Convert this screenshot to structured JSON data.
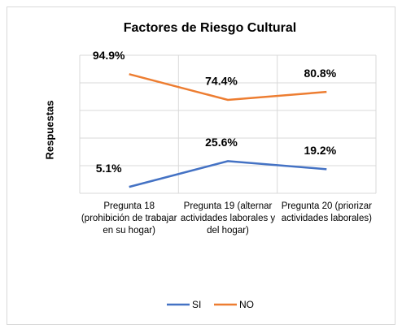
{
  "chart_data": {
    "type": "line",
    "title": "Factores de Riesgo Cultural",
    "y_label": "Respuestas",
    "categories": [
      "Pregunta 18 (prohibición de trabajar en su hogar)",
      "Pregunta 19 (alternar actividades laborales y del hogar)",
      "Pregunta 20 (priorizar actividades laborales)"
    ],
    "series": [
      {
        "name": "SI",
        "color": "#4472c4",
        "values": [
          5.1,
          25.6,
          19.2
        ],
        "value_labels": [
          "5.1%",
          "25.6%",
          "19.2%"
        ]
      },
      {
        "name": "NO",
        "color": "#ed7d31",
        "values": [
          94.9,
          74.4,
          80.8
        ],
        "value_labels": [
          "94.9%",
          "74.4%",
          "80.8%"
        ]
      }
    ],
    "ylim": [
      0,
      110
    ],
    "yticks": [
      0,
      22,
      44,
      66,
      88,
      110
    ],
    "grid": true,
    "legend": "bottom"
  }
}
